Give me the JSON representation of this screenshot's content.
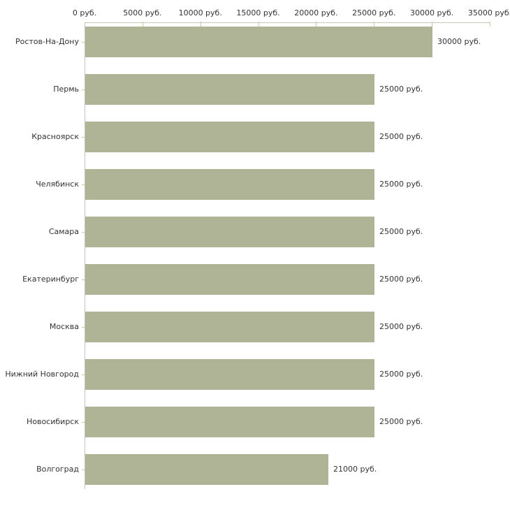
{
  "chart_data": {
    "type": "bar",
    "orientation": "horizontal",
    "title": "",
    "xlabel": "",
    "ylabel": "",
    "categories": [
      "Ростов-На-Дону",
      "Пермь",
      "Красноярск",
      "Челябинск",
      "Самара",
      "Екатеринбург",
      "Москва",
      "Нижний Новгород",
      "Новосибирск",
      "Волгоград"
    ],
    "values": [
      30000,
      25000,
      25000,
      25000,
      25000,
      25000,
      25000,
      25000,
      25000,
      21000
    ],
    "value_labels": [
      "30000 руб.",
      "25000 руб.",
      "25000 руб.",
      "25000 руб.",
      "25000 руб.",
      "25000 руб.",
      "25000 руб.",
      "25000 руб.",
      "25000 руб.",
      "21000 руб."
    ],
    "x_axis": {
      "position": "top",
      "min": 0,
      "max": 35000,
      "tick_values": [
        0,
        5000,
        10000,
        15000,
        20000,
        25000,
        30000,
        35000
      ],
      "tick_labels": [
        "0 руб.",
        "5000 руб.",
        "10000 руб.",
        "15000 руб.",
        "20000 руб.",
        "25000 руб.",
        "30000 руб.",
        "35000 руб."
      ]
    },
    "grid": false,
    "legend": false,
    "colors": {
      "bar": "#afb496",
      "axis_line_vertical": "#c4c4c4",
      "axis_line_horizontal": "#c6c6ba",
      "tick_mark": "#c9cc96",
      "label_text": "#333333",
      "background": "#ffffff"
    }
  }
}
